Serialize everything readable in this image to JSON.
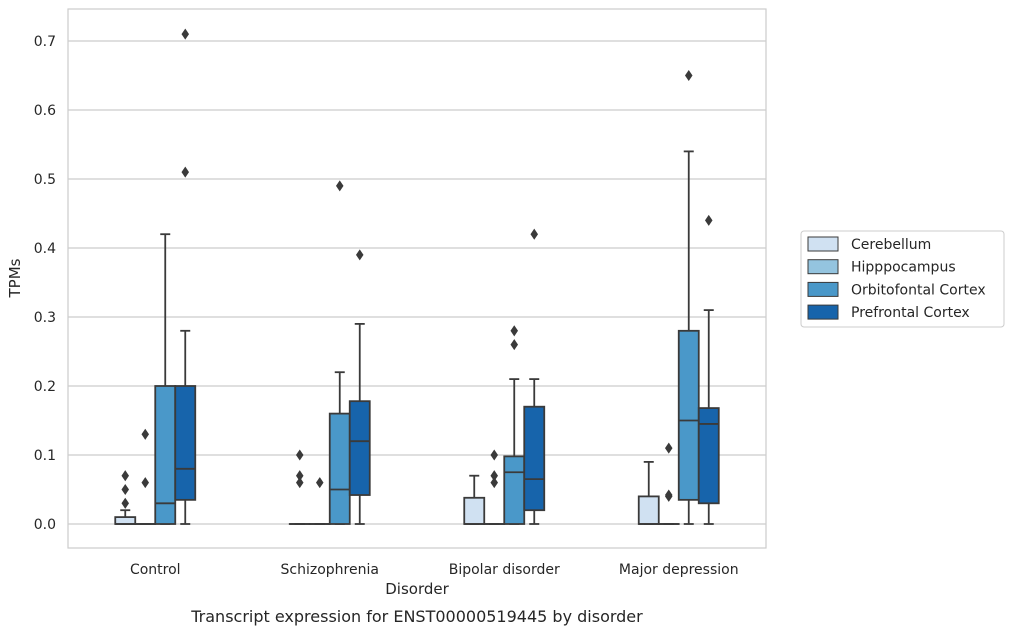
{
  "chart_data": {
    "type": "box",
    "title": "Transcript expression for ENST00000519445 by disorder",
    "xlabel": "Disorder",
    "ylabel": "TPMs",
    "ylim": [
      -0.035,
      0.745
    ],
    "yticks": [
      "0.0",
      "0.1",
      "0.2",
      "0.3",
      "0.4",
      "0.5",
      "0.6",
      "0.7"
    ],
    "grid": true,
    "legend_position": "right",
    "categories": [
      "Control",
      "Schizophrenia",
      "Bipolar disorder",
      "Major depression"
    ],
    "series": [
      {
        "name": "Cerebellum",
        "color": "#d0e1f2",
        "boxes": [
          {
            "min": 0,
            "q1": 0,
            "median": 0,
            "q3": 0.01,
            "max": 0.02,
            "outliers": [
              0.03,
              0.05,
              0.07
            ]
          },
          {
            "min": 0,
            "q1": 0,
            "median": 0,
            "q3": 0,
            "max": 0,
            "outliers": [
              0.06,
              0.07,
              0.1
            ]
          },
          {
            "min": 0,
            "q1": 0,
            "median": 0,
            "q3": 0.038,
            "max": 0.07,
            "outliers": []
          },
          {
            "min": 0,
            "q1": 0,
            "median": 0,
            "q3": 0.04,
            "max": 0.09,
            "outliers": []
          }
        ]
      },
      {
        "name": "Hipppocampus",
        "color": "#94c4df",
        "boxes": [
          {
            "min": 0,
            "q1": 0,
            "median": 0,
            "q3": 0,
            "max": 0,
            "outliers": [
              0.06,
              0.13
            ]
          },
          {
            "min": 0,
            "q1": 0,
            "median": 0,
            "q3": 0,
            "max": 0,
            "outliers": [
              0.06
            ]
          },
          {
            "min": 0,
            "q1": 0,
            "median": 0,
            "q3": 0,
            "max": 0,
            "outliers": [
              0.06,
              0.07,
              0.1
            ]
          },
          {
            "min": 0,
            "q1": 0,
            "median": 0,
            "q3": 0,
            "max": 0,
            "outliers": [
              0.04,
              0.042,
              0.11
            ]
          }
        ]
      },
      {
        "name": "Orbitofontal Cortex",
        "color": "#4a98c9",
        "boxes": [
          {
            "min": 0,
            "q1": 0,
            "median": 0.03,
            "q3": 0.2,
            "max": 0.42,
            "outliers": []
          },
          {
            "min": 0,
            "q1": 0,
            "median": 0.05,
            "q3": 0.16,
            "max": 0.22,
            "outliers": [
              0.49
            ]
          },
          {
            "min": 0,
            "q1": 0,
            "median": 0.075,
            "q3": 0.098,
            "max": 0.21,
            "outliers": [
              0.26,
              0.28
            ]
          },
          {
            "min": 0,
            "q1": 0.035,
            "median": 0.15,
            "q3": 0.28,
            "max": 0.54,
            "outliers": [
              0.65
            ]
          }
        ]
      },
      {
        "name": "Prefrontal Cortex",
        "color": "#1764ab",
        "boxes": [
          {
            "min": 0,
            "q1": 0.035,
            "median": 0.08,
            "q3": 0.2,
            "max": 0.28,
            "outliers": [
              0.51,
              0.71
            ]
          },
          {
            "min": 0,
            "q1": 0.042,
            "median": 0.12,
            "q3": 0.178,
            "max": 0.29,
            "outliers": [
              0.39
            ]
          },
          {
            "min": 0,
            "q1": 0.02,
            "median": 0.065,
            "q3": 0.17,
            "max": 0.21,
            "outliers": [
              0.42
            ]
          },
          {
            "min": 0,
            "q1": 0.03,
            "median": 0.145,
            "q3": 0.168,
            "max": 0.31,
            "outliers": [
              0.44
            ]
          }
        ]
      }
    ]
  }
}
